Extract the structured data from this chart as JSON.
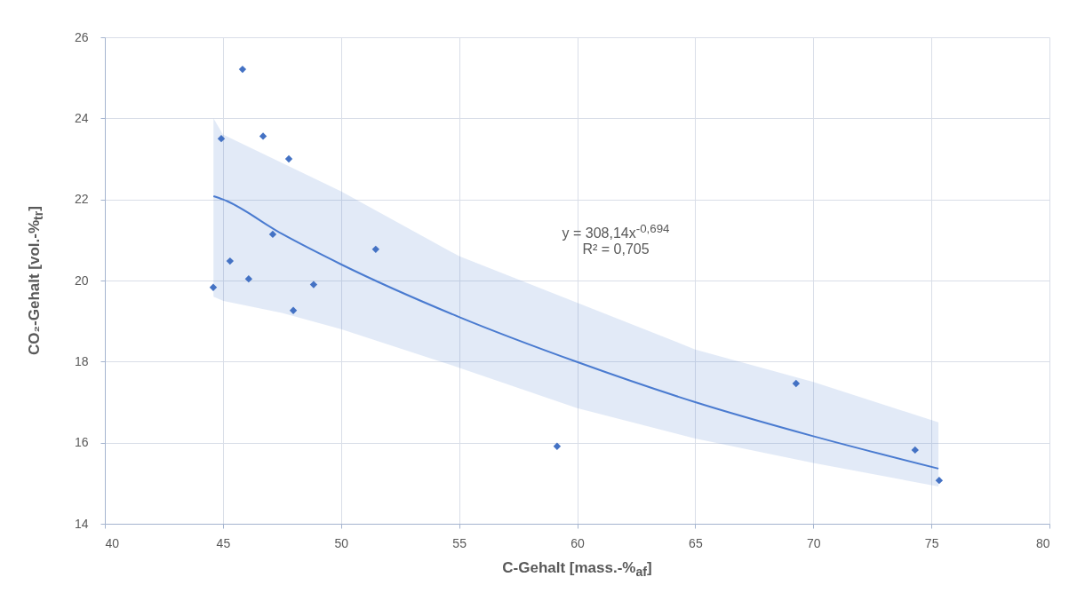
{
  "chart_data": {
    "type": "scatter",
    "xlabel": "C-Gehalt [mass.-%$_{af}$]",
    "ylabel": "CO₂-Gehalt [vol.-%$_{tr}$]",
    "annotations": [
      "y = 308,14x$^{-0,694}$",
      "R² = 0,705"
    ],
    "xlim": [
      40,
      80
    ],
    "xticks": [
      40,
      45,
      50,
      55,
      60,
      65,
      70,
      75,
      80
    ],
    "ylim": [
      14,
      26
    ],
    "yticks": [
      14,
      16,
      18,
      20,
      22,
      24,
      26
    ],
    "grid": true,
    "series": [
      {
        "type": "line",
        "color": "#4a7bd0",
        "x": [
          44.6,
          45,
          47.5,
          50,
          55,
          60,
          65,
          70,
          75.3
        ],
        "values": [
          22.08,
          22.0,
          21.15,
          20.4,
          19.1,
          17.99,
          17.0,
          16.16,
          15.36
        ],
        "lower": [
          19.6,
          19.5,
          19.2,
          18.8,
          17.85,
          16.85,
          16.1,
          15.5,
          14.92
        ],
        "upper": [
          24.0,
          23.6,
          22.9,
          22.2,
          20.6,
          19.45,
          18.3,
          17.5,
          16.5
        ]
      },
      {
        "marker": "diamond",
        "color": "#4472c4",
        "x": [
          44.59,
          44.93,
          45.3,
          45.83,
          46.09,
          46.7,
          47.11,
          47.79,
          47.98,
          48.84,
          51.47,
          59.15,
          69.27,
          74.31,
          75.33
        ],
        "values": [
          19.83,
          23.5,
          20.48,
          25.21,
          20.04,
          23.56,
          21.14,
          23.0,
          19.26,
          19.9,
          20.77,
          15.91,
          17.46,
          15.82,
          15.07
        ]
      }
    ]
  }
}
